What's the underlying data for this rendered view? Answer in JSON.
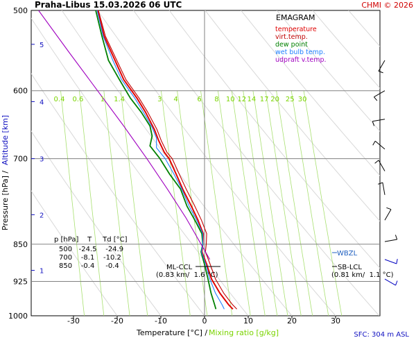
{
  "title": "Praha-Libus    15.03.2026 06 UTC",
  "copyright": "CHMI © 2026",
  "xlabel": "Temperature [°C]  /",
  "xlabel2": "Mixing ratio [g/kg]",
  "ylabel_pressure": "Pressure [hPa]  /",
  "ylabel_altitude": "Altitude [km]",
  "sfc_text": "SFC: 304 m ASL",
  "legend": {
    "title": "EMAGRAM",
    "items": [
      {
        "label": "temperature",
        "color": "#e00000"
      },
      {
        "label": "virt.temp.",
        "color": "#c00000"
      },
      {
        "label": "dew point",
        "color": "#008000"
      },
      {
        "label": "wet bulb temp.",
        "color": "#2080ff"
      },
      {
        "label": "udpraft v.temp.",
        "color": "#a000c0"
      }
    ]
  },
  "table": {
    "header": "p [hPa]    T     Td [°C]",
    "rows": [
      "500   -24.5    -24.9",
      "700    -8.1    -10.2",
      "850    -0.4     -0.4"
    ]
  },
  "annotations": {
    "ml_ccl": "ML-CCL",
    "ml_ccl_val": "(0.83 km/  1.6 °C)",
    "wbzl": "WBZL",
    "sb_lcl": "SB-LCL",
    "sb_lcl_val": "(0.81 km/  1.1 °C)"
  },
  "chart_data": {
    "type": "line",
    "x_axis": "temperature",
    "x_unit": "°C",
    "xlim": [
      -35,
      35
    ],
    "x_ticks": [
      -30,
      -20,
      -10,
      0,
      10,
      20,
      30
    ],
    "y_axis": "pressure",
    "y_unit": "hPa",
    "y_scale": "log",
    "ylim": [
      1000,
      500
    ],
    "y_ticks": [
      500,
      600,
      700,
      850,
      925,
      1000
    ],
    "altitude_ticks_km": [
      1,
      2,
      3,
      4,
      5
    ],
    "mixing_ratio_labels": [
      0.4,
      0.6,
      1,
      1.4,
      3,
      4,
      6,
      8,
      10,
      12,
      14,
      17,
      20,
      25,
      30
    ],
    "series": [
      {
        "name": "temperature",
        "color": "#e00000",
        "points": [
          [
            -24.5,
            500
          ],
          [
            -23,
            530
          ],
          [
            -20.5,
            560
          ],
          [
            -18.5,
            585
          ],
          [
            -15.5,
            610
          ],
          [
            -13.5,
            630
          ],
          [
            -11.5,
            655
          ],
          [
            -10.5,
            672
          ],
          [
            -9.2,
            690
          ],
          [
            -8.1,
            700
          ],
          [
            -6.5,
            725
          ],
          [
            -5,
            750
          ],
          [
            -3,
            780
          ],
          [
            -1.5,
            805
          ],
          [
            -0.3,
            830
          ],
          [
            -0.4,
            850
          ],
          [
            -0.6,
            865
          ],
          [
            0.5,
            890
          ],
          [
            1.6,
            920
          ],
          [
            3.5,
            950
          ],
          [
            5.5,
            975
          ],
          [
            6.5,
            985
          ]
        ]
      },
      {
        "name": "virt.temp.",
        "color": "#c00000",
        "points": [
          [
            -24.3,
            500
          ],
          [
            -22.7,
            530
          ],
          [
            -20.1,
            560
          ],
          [
            -18.0,
            585
          ],
          [
            -15.0,
            610
          ],
          [
            -13.0,
            630
          ],
          [
            -10.9,
            655
          ],
          [
            -9.9,
            672
          ],
          [
            -8.6,
            690
          ],
          [
            -7.4,
            700
          ],
          [
            -5.8,
            725
          ],
          [
            -4.2,
            750
          ],
          [
            -2.2,
            780
          ],
          [
            -0.7,
            805
          ],
          [
            0.5,
            830
          ],
          [
            0.4,
            850
          ],
          [
            0.2,
            865
          ],
          [
            1.3,
            890
          ],
          [
            2.5,
            920
          ],
          [
            4.4,
            950
          ],
          [
            6.4,
            975
          ],
          [
            7.4,
            985
          ]
        ]
      },
      {
        "name": "dew point",
        "color": "#008000",
        "points": [
          [
            -24.9,
            500
          ],
          [
            -23.5,
            530
          ],
          [
            -22,
            560
          ],
          [
            -19.5,
            585
          ],
          [
            -17,
            610
          ],
          [
            -14.5,
            630
          ],
          [
            -12.5,
            650
          ],
          [
            -12,
            665
          ],
          [
            -12.5,
            680
          ],
          [
            -10.2,
            700
          ],
          [
            -8,
            725
          ],
          [
            -5.5,
            750
          ],
          [
            -4,
            780
          ],
          [
            -2.2,
            805
          ],
          [
            -0.6,
            830
          ],
          [
            -0.4,
            850
          ],
          [
            -0.8,
            865
          ],
          [
            0,
            890
          ],
          [
            0.8,
            920
          ],
          [
            1.5,
            950
          ],
          [
            2.3,
            975
          ],
          [
            2.6,
            985
          ]
        ]
      },
      {
        "name": "wet bulb temp.",
        "color": "#2080ff",
        "points": [
          [
            -24.6,
            500
          ],
          [
            -23.2,
            530
          ],
          [
            -21,
            560
          ],
          [
            -19,
            585
          ],
          [
            -16,
            610
          ],
          [
            -14,
            630
          ],
          [
            -12,
            652
          ],
          [
            -11,
            668
          ],
          [
            -11,
            683
          ],
          [
            -9,
            700
          ],
          [
            -7,
            725
          ],
          [
            -5.2,
            750
          ],
          [
            -3.5,
            780
          ],
          [
            -1.8,
            805
          ],
          [
            -0.4,
            830
          ],
          [
            -0.4,
            850
          ],
          [
            -0.7,
            865
          ],
          [
            0.3,
            890
          ],
          [
            1.2,
            920
          ],
          [
            2.5,
            950
          ],
          [
            4,
            975
          ],
          [
            4.5,
            985
          ]
        ]
      },
      {
        "name": "udpraft v.temp.",
        "color": "#a000c0",
        "points": [
          [
            -38,
            500
          ],
          [
            -31,
            550
          ],
          [
            -24.5,
            600
          ],
          [
            -18.5,
            650
          ],
          [
            -13.2,
            700
          ],
          [
            -8.5,
            750
          ],
          [
            -4.3,
            800
          ],
          [
            -0.8,
            850
          ],
          [
            1.2,
            880
          ]
        ]
      }
    ],
    "wind_barbs_count": 10
  }
}
